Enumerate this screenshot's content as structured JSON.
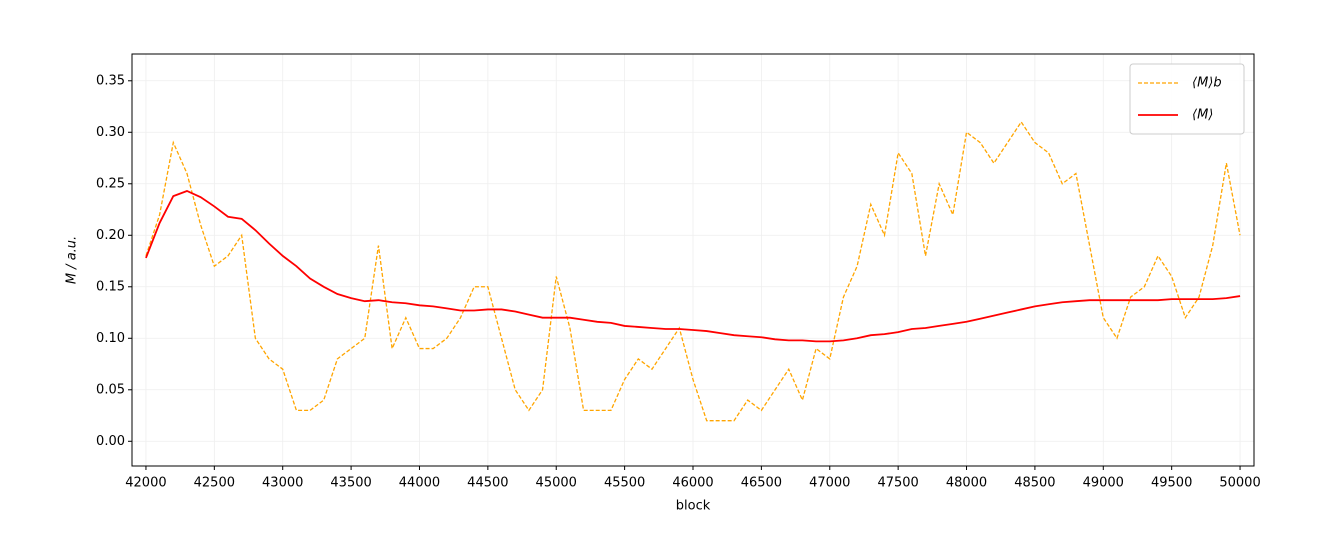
{
  "chart_data": {
    "type": "line",
    "x_label": "block",
    "y_label": "M / a.u.",
    "x": [
      42000,
      42100,
      42200,
      42300,
      42400,
      42500,
      42600,
      42700,
      42800,
      42900,
      43000,
      43100,
      43200,
      43300,
      43400,
      43500,
      43600,
      43700,
      43800,
      43900,
      44000,
      44100,
      44200,
      44300,
      44400,
      44500,
      44600,
      44700,
      44800,
      44900,
      45000,
      45100,
      45200,
      45300,
      45400,
      45500,
      45600,
      45700,
      45800,
      45900,
      46000,
      46100,
      46200,
      46300,
      46400,
      46500,
      46600,
      46700,
      46800,
      46900,
      47000,
      47100,
      47200,
      47300,
      47400,
      47500,
      47600,
      47700,
      47800,
      47900,
      48000,
      48100,
      48200,
      48300,
      48400,
      48500,
      48600,
      48700,
      48800,
      48900,
      49000,
      49100,
      49200,
      49300,
      49400,
      49500,
      49600,
      49700,
      49800,
      49900,
      50000
    ],
    "series": [
      {
        "name": "⟨M⟩b",
        "color": "#ffa500",
        "dashed": true,
        "values": [
          0.18,
          0.22,
          0.29,
          0.26,
          0.21,
          0.17,
          0.18,
          0.2,
          0.1,
          0.08,
          0.07,
          0.03,
          0.03,
          0.04,
          0.08,
          0.09,
          0.1,
          0.19,
          0.09,
          0.12,
          0.09,
          0.09,
          0.1,
          0.12,
          0.15,
          0.15,
          0.1,
          0.05,
          0.03,
          0.05,
          0.16,
          0.11,
          0.03,
          0.03,
          0.03,
          0.06,
          0.08,
          0.07,
          0.09,
          0.11,
          0.06,
          0.02,
          0.02,
          0.02,
          0.04,
          0.03,
          0.05,
          0.07,
          0.04,
          0.09,
          0.08,
          0.14,
          0.17,
          0.23,
          0.2,
          0.28,
          0.26,
          0.18,
          0.25,
          0.22,
          0.3,
          0.29,
          0.27,
          0.29,
          0.31,
          0.29,
          0.28,
          0.25,
          0.26,
          0.19,
          0.12,
          0.1,
          0.14,
          0.15,
          0.18,
          0.16,
          0.12,
          0.14,
          0.19,
          0.27,
          0.2
        ]
      },
      {
        "name": "⟨M⟩",
        "color": "#ff0000",
        "dashed": false,
        "values": [
          0.178,
          0.212,
          0.238,
          0.243,
          0.237,
          0.228,
          0.218,
          0.216,
          0.205,
          0.192,
          0.18,
          0.17,
          0.158,
          0.15,
          0.143,
          0.139,
          0.136,
          0.137,
          0.135,
          0.134,
          0.132,
          0.131,
          0.129,
          0.127,
          0.127,
          0.128,
          0.128,
          0.126,
          0.123,
          0.12,
          0.12,
          0.12,
          0.118,
          0.116,
          0.115,
          0.112,
          0.111,
          0.11,
          0.109,
          0.109,
          0.108,
          0.107,
          0.105,
          0.103,
          0.102,
          0.101,
          0.099,
          0.098,
          0.098,
          0.097,
          0.097,
          0.098,
          0.1,
          0.103,
          0.104,
          0.106,
          0.109,
          0.11,
          0.112,
          0.114,
          0.116,
          0.119,
          0.122,
          0.125,
          0.128,
          0.131,
          0.133,
          0.135,
          0.136,
          0.137,
          0.137,
          0.137,
          0.137,
          0.137,
          0.137,
          0.138,
          0.138,
          0.138,
          0.138,
          0.139,
          0.141
        ]
      }
    ],
    "xlim": [
      41898,
      50102
    ],
    "ylim": [
      -0.024,
      0.376
    ],
    "xticks": [
      42000,
      42500,
      43000,
      43500,
      44000,
      44500,
      45000,
      45500,
      46000,
      46500,
      47000,
      47500,
      48000,
      48500,
      49000,
      49500,
      50000
    ],
    "yticks": [
      {
        "value": 0,
        "label": "0.00"
      },
      0.05,
      {
        "value": 0.1,
        "label": "0.10"
      },
      0.15,
      {
        "value": 0.2,
        "label": "0.20"
      },
      0.25,
      {
        "value": 0.3,
        "label": "0.30"
      },
      0.35
    ],
    "grid": true,
    "legend": "upper right"
  }
}
